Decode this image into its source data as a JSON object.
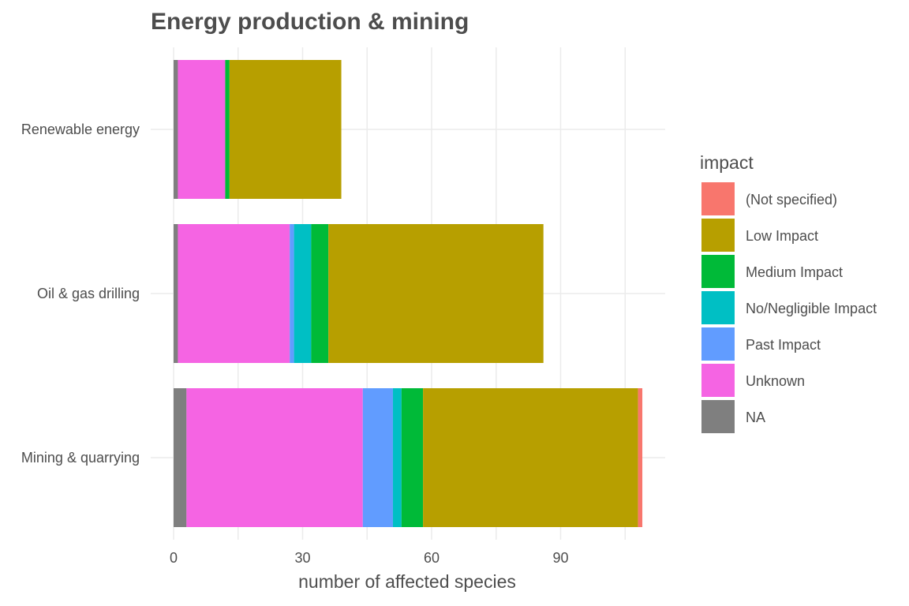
{
  "chart_data": {
    "type": "bar",
    "orientation": "horizontal",
    "stacked": true,
    "title": "Energy production & mining",
    "xlabel": "number of affected species",
    "ylabel": "",
    "xlim": [
      0,
      114
    ],
    "x_ticks": [
      0,
      30,
      60,
      90
    ],
    "grid": true,
    "legend_position": "right",
    "legend_title": "impact",
    "categories": [
      "Renewable energy",
      "Oil & gas drilling",
      "Mining & quarrying"
    ],
    "series": [
      {
        "name": "NA",
        "color": "#7f7f7f",
        "values": [
          1,
          1,
          3
        ]
      },
      {
        "name": "Unknown",
        "color": "#f564e3",
        "values": [
          11,
          26,
          41
        ]
      },
      {
        "name": "Past Impact",
        "color": "#619cff",
        "values": [
          0,
          1,
          7
        ]
      },
      {
        "name": "No/Negligible Impact",
        "color": "#00bfc4",
        "values": [
          0,
          4,
          2
        ]
      },
      {
        "name": "Medium Impact",
        "color": "#00ba38",
        "values": [
          1,
          4,
          5
        ]
      },
      {
        "name": "Low Impact",
        "color": "#b79f00",
        "values": [
          26,
          50,
          50
        ]
      },
      {
        "name": "(Not specified)",
        "color": "#f8766d",
        "values": [
          0,
          0,
          1
        ]
      }
    ],
    "legend_order": [
      "(Not specified)",
      "Low Impact",
      "Medium Impact",
      "No/Negligible Impact",
      "Past Impact",
      "Unknown",
      "NA"
    ]
  }
}
